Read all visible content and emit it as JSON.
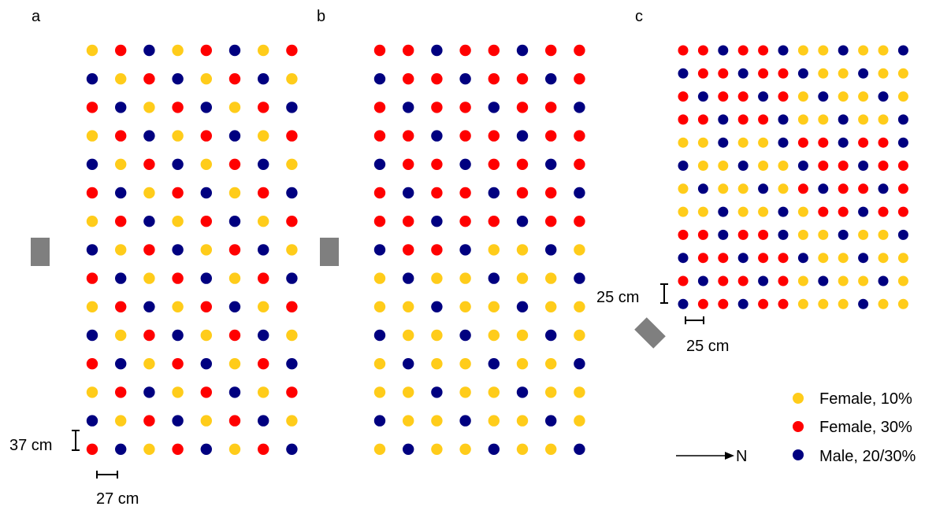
{
  "colors": {
    "female_10": "#FFCC1A",
    "female_30": "#FF0000",
    "male": "#000080",
    "feeder": "#7F7F7F"
  },
  "panels": [
    {
      "id": "a",
      "label": "a",
      "grid": [
        "YRBYRBYR",
        "BYRBYRBY",
        "RBYRBYRB",
        "YRBYRBYR",
        "BYRBYRBY",
        "RBYRBYRB",
        "YRBYRBYR",
        "BYRBYRBY",
        "RBYRBYRB",
        "YRBYRBYR",
        "BYRBYRBY",
        "RBYRBYRB",
        "YRBYRBYR",
        "BYRBYRBY",
        "RBYRBYRB"
      ],
      "row_spacing_label": "37 cm",
      "col_spacing_label": "27 cm"
    },
    {
      "id": "b",
      "label": "b",
      "grid": [
        "RRBRRBRR",
        "BRRBRRBR",
        "RBRRBRRB",
        "RRBRRBRR",
        "BRRBRRBR",
        "RBRRBRRB",
        "RRBRRBRR",
        "BRRBYYBY",
        "YBYYBYYB",
        "YYBYYBYY",
        "BYYBYYBY",
        "YBYYBYYB",
        "YYBYYBYY",
        "BYYBYYBY",
        "YBYYBYYB"
      ]
    },
    {
      "id": "c",
      "label": "c",
      "grid": [
        "RRBRRBYYBYYB",
        "BRRBRRBYYBYY",
        "RBRRBRYBYYBY",
        "RRBRRBYYBYYB",
        "YYBYYBRRBRRB",
        "BYYBYYBRRBRR",
        "YBYYBYRBRRBR",
        "YYBYYBYRRBRR",
        "RRBRRBYYBYYB",
        "BRRBRRBYYBYY",
        "RBRRBRYBYYBY",
        "BRRBRRYYYBYY"
      ],
      "row_spacing_label": "25 cm",
      "col_spacing_label": "25 cm"
    }
  ],
  "legend": [
    {
      "key": "Y",
      "label": "Female,  10%"
    },
    {
      "key": "R",
      "label": "Female,  30%"
    },
    {
      "key": "B",
      "label": "Male, 20/30%"
    }
  ],
  "north_label": "N"
}
